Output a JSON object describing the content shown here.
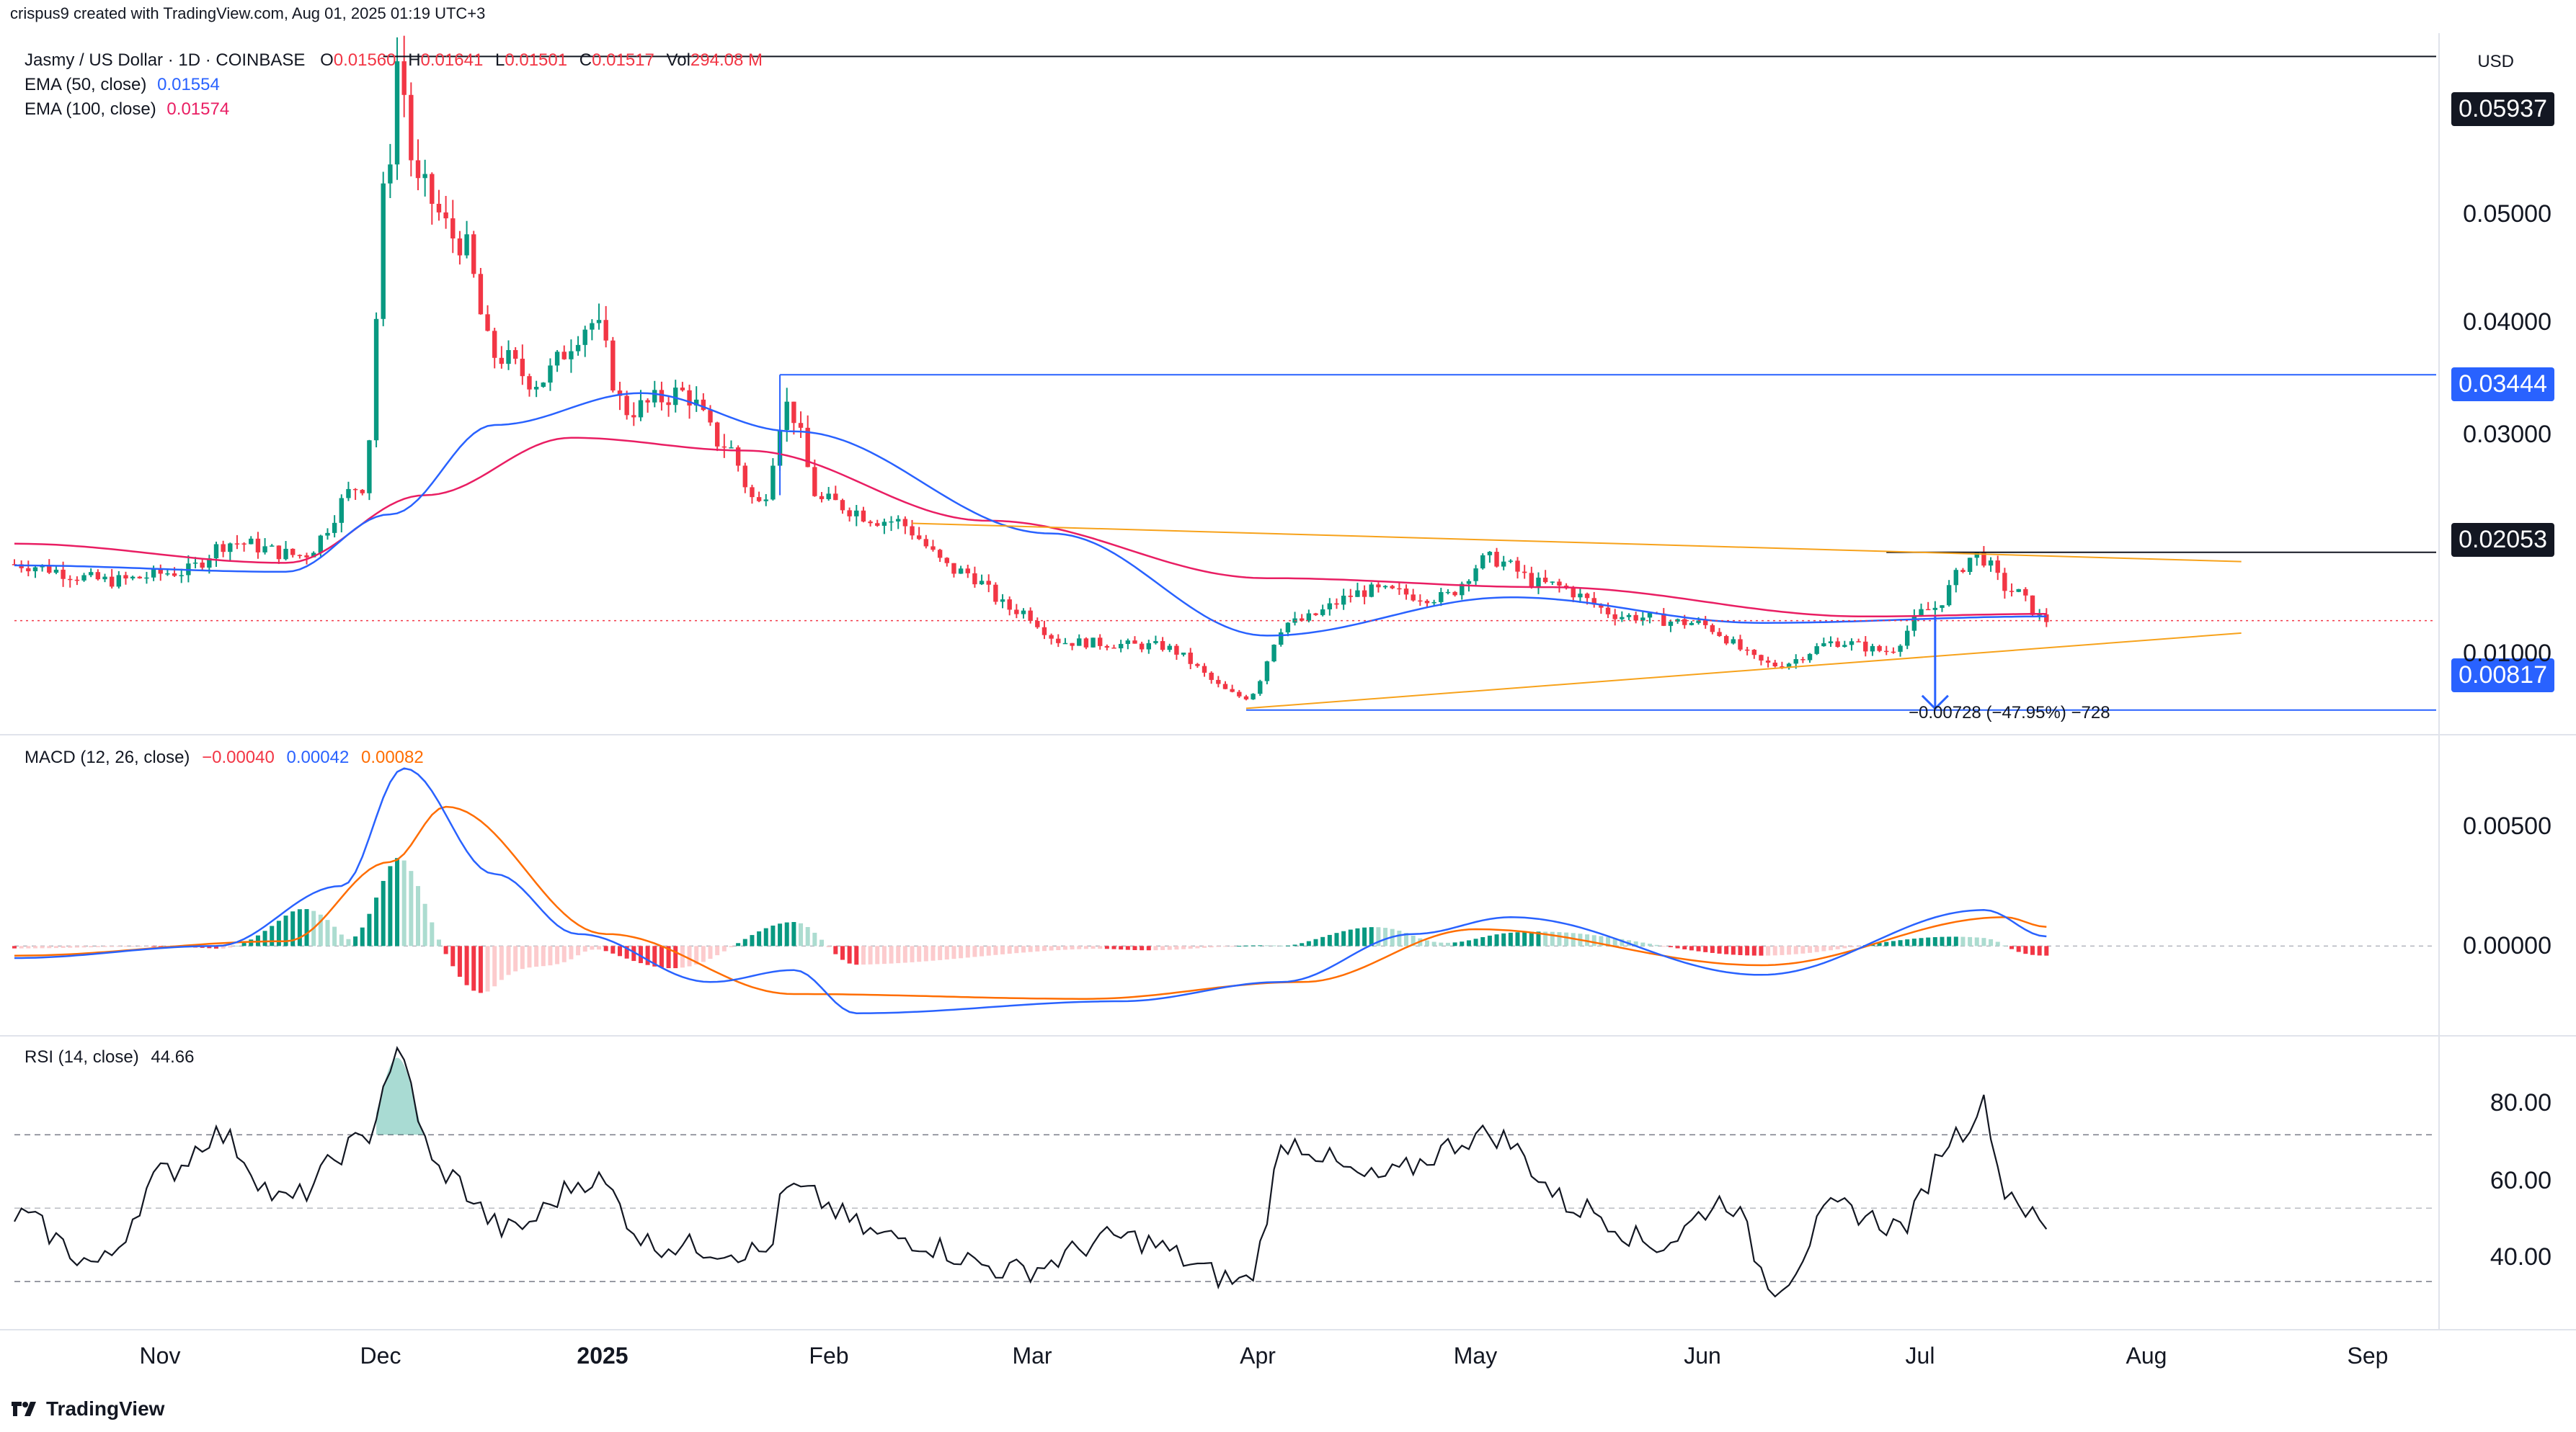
{
  "created_by": "crispus9 created with TradingView.com, Aug 01, 2025 01:19 UTC+3",
  "currency": "USD",
  "symbol_line": {
    "title": "Jasmy / US Dollar · 1D · COINBASE",
    "o_label": "O",
    "o": "0.01560",
    "h_label": "H",
    "h": "0.01641",
    "l_label": "L",
    "l": "0.01501",
    "c_label": "C",
    "c": "0.01517",
    "vol_label": "Vol",
    "vol": "294.08 M"
  },
  "ema50": {
    "label": "EMA (50, close)",
    "value": "0.01554"
  },
  "ema100": {
    "label": "EMA (100, close)",
    "value": "0.01574"
  },
  "macd_header": {
    "label": "MACD (12, 26, close)",
    "hist": "−0.00040",
    "macd": "0.00042",
    "signal": "0.00082"
  },
  "rsi_header": {
    "label": "RSI (14, close)",
    "value": "44.66"
  },
  "price_tags": {
    "top": "0.05937",
    "mid": "0.03444",
    "neck": "0.02053",
    "target": "0.00817"
  },
  "measure_label": "−0.00728 (−47.95%) −728",
  "price_axis": [
    "0.05000",
    "0.04000",
    "0.03000",
    "0.01000"
  ],
  "macd_axis": [
    "0.00500",
    "0.00000"
  ],
  "rsi_axis": [
    "80.00",
    "60.00",
    "40.00"
  ],
  "time_axis": [
    "Nov",
    "Dec",
    "2025",
    "Feb",
    "Mar",
    "Apr",
    "May",
    "Jun",
    "Jul",
    "Aug",
    "Sep"
  ],
  "footer_logo": "TradingView",
  "colors": {
    "up": "#089981",
    "down": "#f23645",
    "ema50": "#2962ff",
    "ema100": "#e91e63",
    "macd": "#2962ff",
    "signal": "#ff6d00",
    "trend": "#f7a21b",
    "hline": "#2962ff"
  },
  "chart_data": {
    "type": "candlestick",
    "title": "Jasmy / US Dollar · 1D · COINBASE",
    "x_range": [
      "2024-10-12",
      "2025-09-25"
    ],
    "y_range": [
      0.0068,
      0.0612
    ],
    "key_levels": [
      0.05937,
      0.03444,
      0.02053,
      0.00817
    ],
    "series_close_anchors": [
      {
        "date": "2024-10-12",
        "close": 0.0196
      },
      {
        "date": "2024-10-26",
        "close": 0.0183
      },
      {
        "date": "2024-11-05",
        "close": 0.019
      },
      {
        "date": "2024-11-12",
        "close": 0.0213
      },
      {
        "date": "2024-11-22",
        "close": 0.0203
      },
      {
        "date": "2024-12-01",
        "close": 0.0258
      },
      {
        "date": "2024-12-05",
        "close": 0.0521
      },
      {
        "date": "2024-12-06",
        "close": 0.059
      },
      {
        "date": "2024-12-09",
        "close": 0.049
      },
      {
        "date": "2024-12-15",
        "close": 0.045
      },
      {
        "date": "2024-12-20",
        "close": 0.036
      },
      {
        "date": "2024-12-26",
        "close": 0.034
      },
      {
        "date": "2025-01-03",
        "close": 0.0385
      },
      {
        "date": "2025-01-08",
        "close": 0.0317
      },
      {
        "date": "2025-01-16",
        "close": 0.033
      },
      {
        "date": "2025-01-22",
        "close": 0.029
      },
      {
        "date": "2025-01-27",
        "close": 0.0243
      },
      {
        "date": "2025-01-31",
        "close": 0.032
      },
      {
        "date": "2025-02-05",
        "close": 0.0245
      },
      {
        "date": "2025-02-15",
        "close": 0.023
      },
      {
        "date": "2025-02-25",
        "close": 0.019
      },
      {
        "date": "2025-03-05",
        "close": 0.016
      },
      {
        "date": "2025-03-12",
        "close": 0.0135
      },
      {
        "date": "2025-03-25",
        "close": 0.0132
      },
      {
        "date": "2025-04-07",
        "close": 0.0092
      },
      {
        "date": "2025-04-13",
        "close": 0.015
      },
      {
        "date": "2025-04-25",
        "close": 0.0175
      },
      {
        "date": "2025-05-05",
        "close": 0.017
      },
      {
        "date": "2025-05-12",
        "close": 0.02
      },
      {
        "date": "2025-05-20",
        "close": 0.018
      },
      {
        "date": "2025-06-01",
        "close": 0.0155
      },
      {
        "date": "2025-06-10",
        "close": 0.015
      },
      {
        "date": "2025-06-22",
        "close": 0.0117
      },
      {
        "date": "2025-07-01",
        "close": 0.0135
      },
      {
        "date": "2025-07-08",
        "close": 0.0128
      },
      {
        "date": "2025-07-14",
        "close": 0.016
      },
      {
        "date": "2025-07-21",
        "close": 0.0203
      },
      {
        "date": "2025-07-26",
        "close": 0.0175
      },
      {
        "date": "2025-07-31",
        "close": 0.0152
      }
    ],
    "ema50_anchors": [
      {
        "date": "2024-10-12",
        "v": 0.0195
      },
      {
        "date": "2024-11-20",
        "v": 0.019
      },
      {
        "date": "2024-12-05",
        "v": 0.0235
      },
      {
        "date": "2024-12-20",
        "v": 0.0305
      },
      {
        "date": "2025-01-10",
        "v": 0.033
      },
      {
        "date": "2025-02-01",
        "v": 0.03
      },
      {
        "date": "2025-03-10",
        "v": 0.022
      },
      {
        "date": "2025-04-10",
        "v": 0.014
      },
      {
        "date": "2025-05-15",
        "v": 0.017
      },
      {
        "date": "2025-06-20",
        "v": 0.015
      },
      {
        "date": "2025-07-31",
        "v": 0.0155
      }
    ],
    "ema100_anchors": [
      {
        "date": "2024-10-12",
        "v": 0.0212
      },
      {
        "date": "2024-11-20",
        "v": 0.0197
      },
      {
        "date": "2024-12-10",
        "v": 0.025
      },
      {
        "date": "2024-12-31",
        "v": 0.0295
      },
      {
        "date": "2025-01-25",
        "v": 0.0285
      },
      {
        "date": "2025-03-01",
        "v": 0.023
      },
      {
        "date": "2025-04-10",
        "v": 0.0185
      },
      {
        "date": "2025-05-20",
        "v": 0.0178
      },
      {
        "date": "2025-07-05",
        "v": 0.0155
      },
      {
        "date": "2025-07-31",
        "v": 0.0157
      }
    ],
    "macd": {
      "y_range": [
        -0.0035,
        0.0085
      ],
      "macd_anchors": [
        {
          "date": "2024-10-12",
          "v": -0.0005
        },
        {
          "date": "2024-11-10",
          "v": 0.0
        },
        {
          "date": "2024-11-28",
          "v": 0.0025
        },
        {
          "date": "2024-12-07",
          "v": 0.0074
        },
        {
          "date": "2024-12-20",
          "v": 0.003
        },
        {
          "date": "2025-01-01",
          "v": 0.0005
        },
        {
          "date": "2025-01-20",
          "v": -0.0015
        },
        {
          "date": "2025-02-01",
          "v": -0.001
        },
        {
          "date": "2025-02-10",
          "v": -0.0028
        },
        {
          "date": "2025-03-20",
          "v": -0.0023
        },
        {
          "date": "2025-04-12",
          "v": -0.0015
        },
        {
          "date": "2025-05-01",
          "v": 0.0005
        },
        {
          "date": "2025-05-15",
          "v": 0.0012
        },
        {
          "date": "2025-06-20",
          "v": -0.0012
        },
        {
          "date": "2025-07-22",
          "v": 0.0015
        },
        {
          "date": "2025-07-31",
          "v": 0.0004
        }
      ],
      "signal_anchors": [
        {
          "date": "2024-10-12",
          "v": -0.0004
        },
        {
          "date": "2024-11-20",
          "v": 0.0002
        },
        {
          "date": "2024-12-05",
          "v": 0.0035
        },
        {
          "date": "2024-12-13",
          "v": 0.0058
        },
        {
          "date": "2025-01-05",
          "v": 0.0005
        },
        {
          "date": "2025-02-01",
          "v": -0.002
        },
        {
          "date": "2025-03-15",
          "v": -0.0022
        },
        {
          "date": "2025-04-15",
          "v": -0.0015
        },
        {
          "date": "2025-05-10",
          "v": 0.0007
        },
        {
          "date": "2025-06-20",
          "v": -0.0008
        },
        {
          "date": "2025-07-25",
          "v": 0.0012
        },
        {
          "date": "2025-07-31",
          "v": 0.0008
        }
      ]
    },
    "rsi": {
      "y_range": [
        20,
        95
      ],
      "overbought": 70,
      "mid": 50,
      "oversold": 30,
      "anchors": [
        {
          "date": "2024-10-12",
          "v": 48
        },
        {
          "date": "2024-10-24",
          "v": 35
        },
        {
          "date": "2024-11-03",
          "v": 60
        },
        {
          "date": "2024-11-10",
          "v": 70
        },
        {
          "date": "2024-11-20",
          "v": 52
        },
        {
          "date": "2024-12-01",
          "v": 68
        },
        {
          "date": "2024-12-06",
          "v": 91
        },
        {
          "date": "2024-12-12",
          "v": 60
        },
        {
          "date": "2024-12-22",
          "v": 44
        },
        {
          "date": "2025-01-03",
          "v": 58
        },
        {
          "date": "2025-01-12",
          "v": 40
        },
        {
          "date": "2025-01-28",
          "v": 38
        },
        {
          "date": "2025-01-31",
          "v": 55
        },
        {
          "date": "2025-02-15",
          "v": 42
        },
        {
          "date": "2025-03-05",
          "v": 33
        },
        {
          "date": "2025-03-20",
          "v": 42
        },
        {
          "date": "2025-04-07",
          "v": 30
        },
        {
          "date": "2025-04-13",
          "v": 68
        },
        {
          "date": "2025-04-25",
          "v": 58
        },
        {
          "date": "2025-05-12",
          "v": 70
        },
        {
          "date": "2025-05-25",
          "v": 50
        },
        {
          "date": "2025-06-05",
          "v": 40
        },
        {
          "date": "2025-06-15",
          "v": 52
        },
        {
          "date": "2025-06-22",
          "v": 29
        },
        {
          "date": "2025-07-01",
          "v": 50
        },
        {
          "date": "2025-07-10",
          "v": 45
        },
        {
          "date": "2025-07-18",
          "v": 70
        },
        {
          "date": "2025-07-22",
          "v": 78
        },
        {
          "date": "2025-07-25",
          "v": 55
        },
        {
          "date": "2025-07-31",
          "v": 44.66
        }
      ]
    }
  }
}
